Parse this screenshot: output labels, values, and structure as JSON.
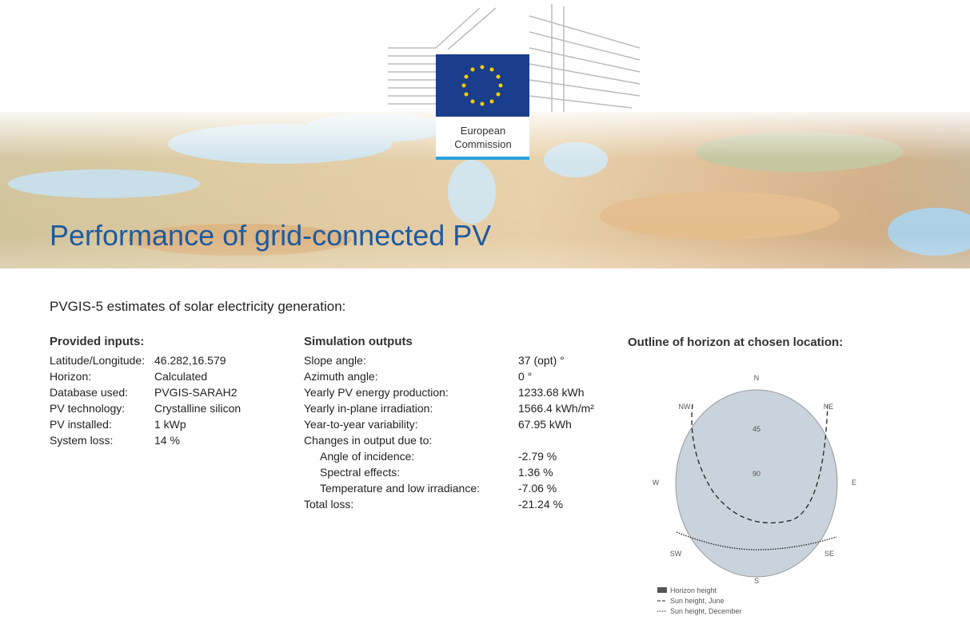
{
  "header": {
    "logo_text": [
      "European",
      "Commission"
    ],
    "title": "Performance of grid-connected PV"
  },
  "subtitle": "PVGIS-5 estimates of solar electricity generation:",
  "inputs": {
    "heading": "Provided inputs:",
    "rows": [
      [
        "Latitude/Longitude:",
        "46.282,16.579"
      ],
      [
        "Horizon:",
        "Calculated"
      ],
      [
        "Database used:",
        "PVGIS-SARAH2"
      ],
      [
        "PV technology:",
        "Crystalline silicon"
      ],
      [
        "PV installed:",
        "1 kWp"
      ],
      [
        "System loss:",
        "14 %"
      ]
    ]
  },
  "outputs": {
    "heading": "Simulation outputs",
    "rows": [
      [
        "Slope angle:",
        "37 (opt) °"
      ],
      [
        "Azimuth angle:",
        "0 °"
      ],
      [
        "Yearly PV energy production:",
        "1233.68 kWh"
      ],
      [
        "Yearly in-plane irradiation:",
        "1566.4 kWh/m²"
      ],
      [
        "Year-to-year variability:",
        "67.95 kWh"
      ],
      [
        "Changes in output due to:",
        ""
      ],
      [
        "Angle of incidence:",
        "-2.79 %"
      ],
      [
        "Spectral effects:",
        "1.36 %"
      ],
      [
        "Temperature and low irradiance:",
        "-7.06 %"
      ],
      [
        "Total loss:",
        "-21.24 %"
      ]
    ]
  },
  "horizon": {
    "title": "Outline of horizon at chosen location:",
    "directions": [
      "N",
      "NE",
      "E",
      "SE",
      "S",
      "SW",
      "W",
      "NW"
    ],
    "elevations": [
      "45",
      "90"
    ],
    "legend": [
      "Horizon height",
      "Sun height, June",
      "Sun height, December"
    ]
  }
}
